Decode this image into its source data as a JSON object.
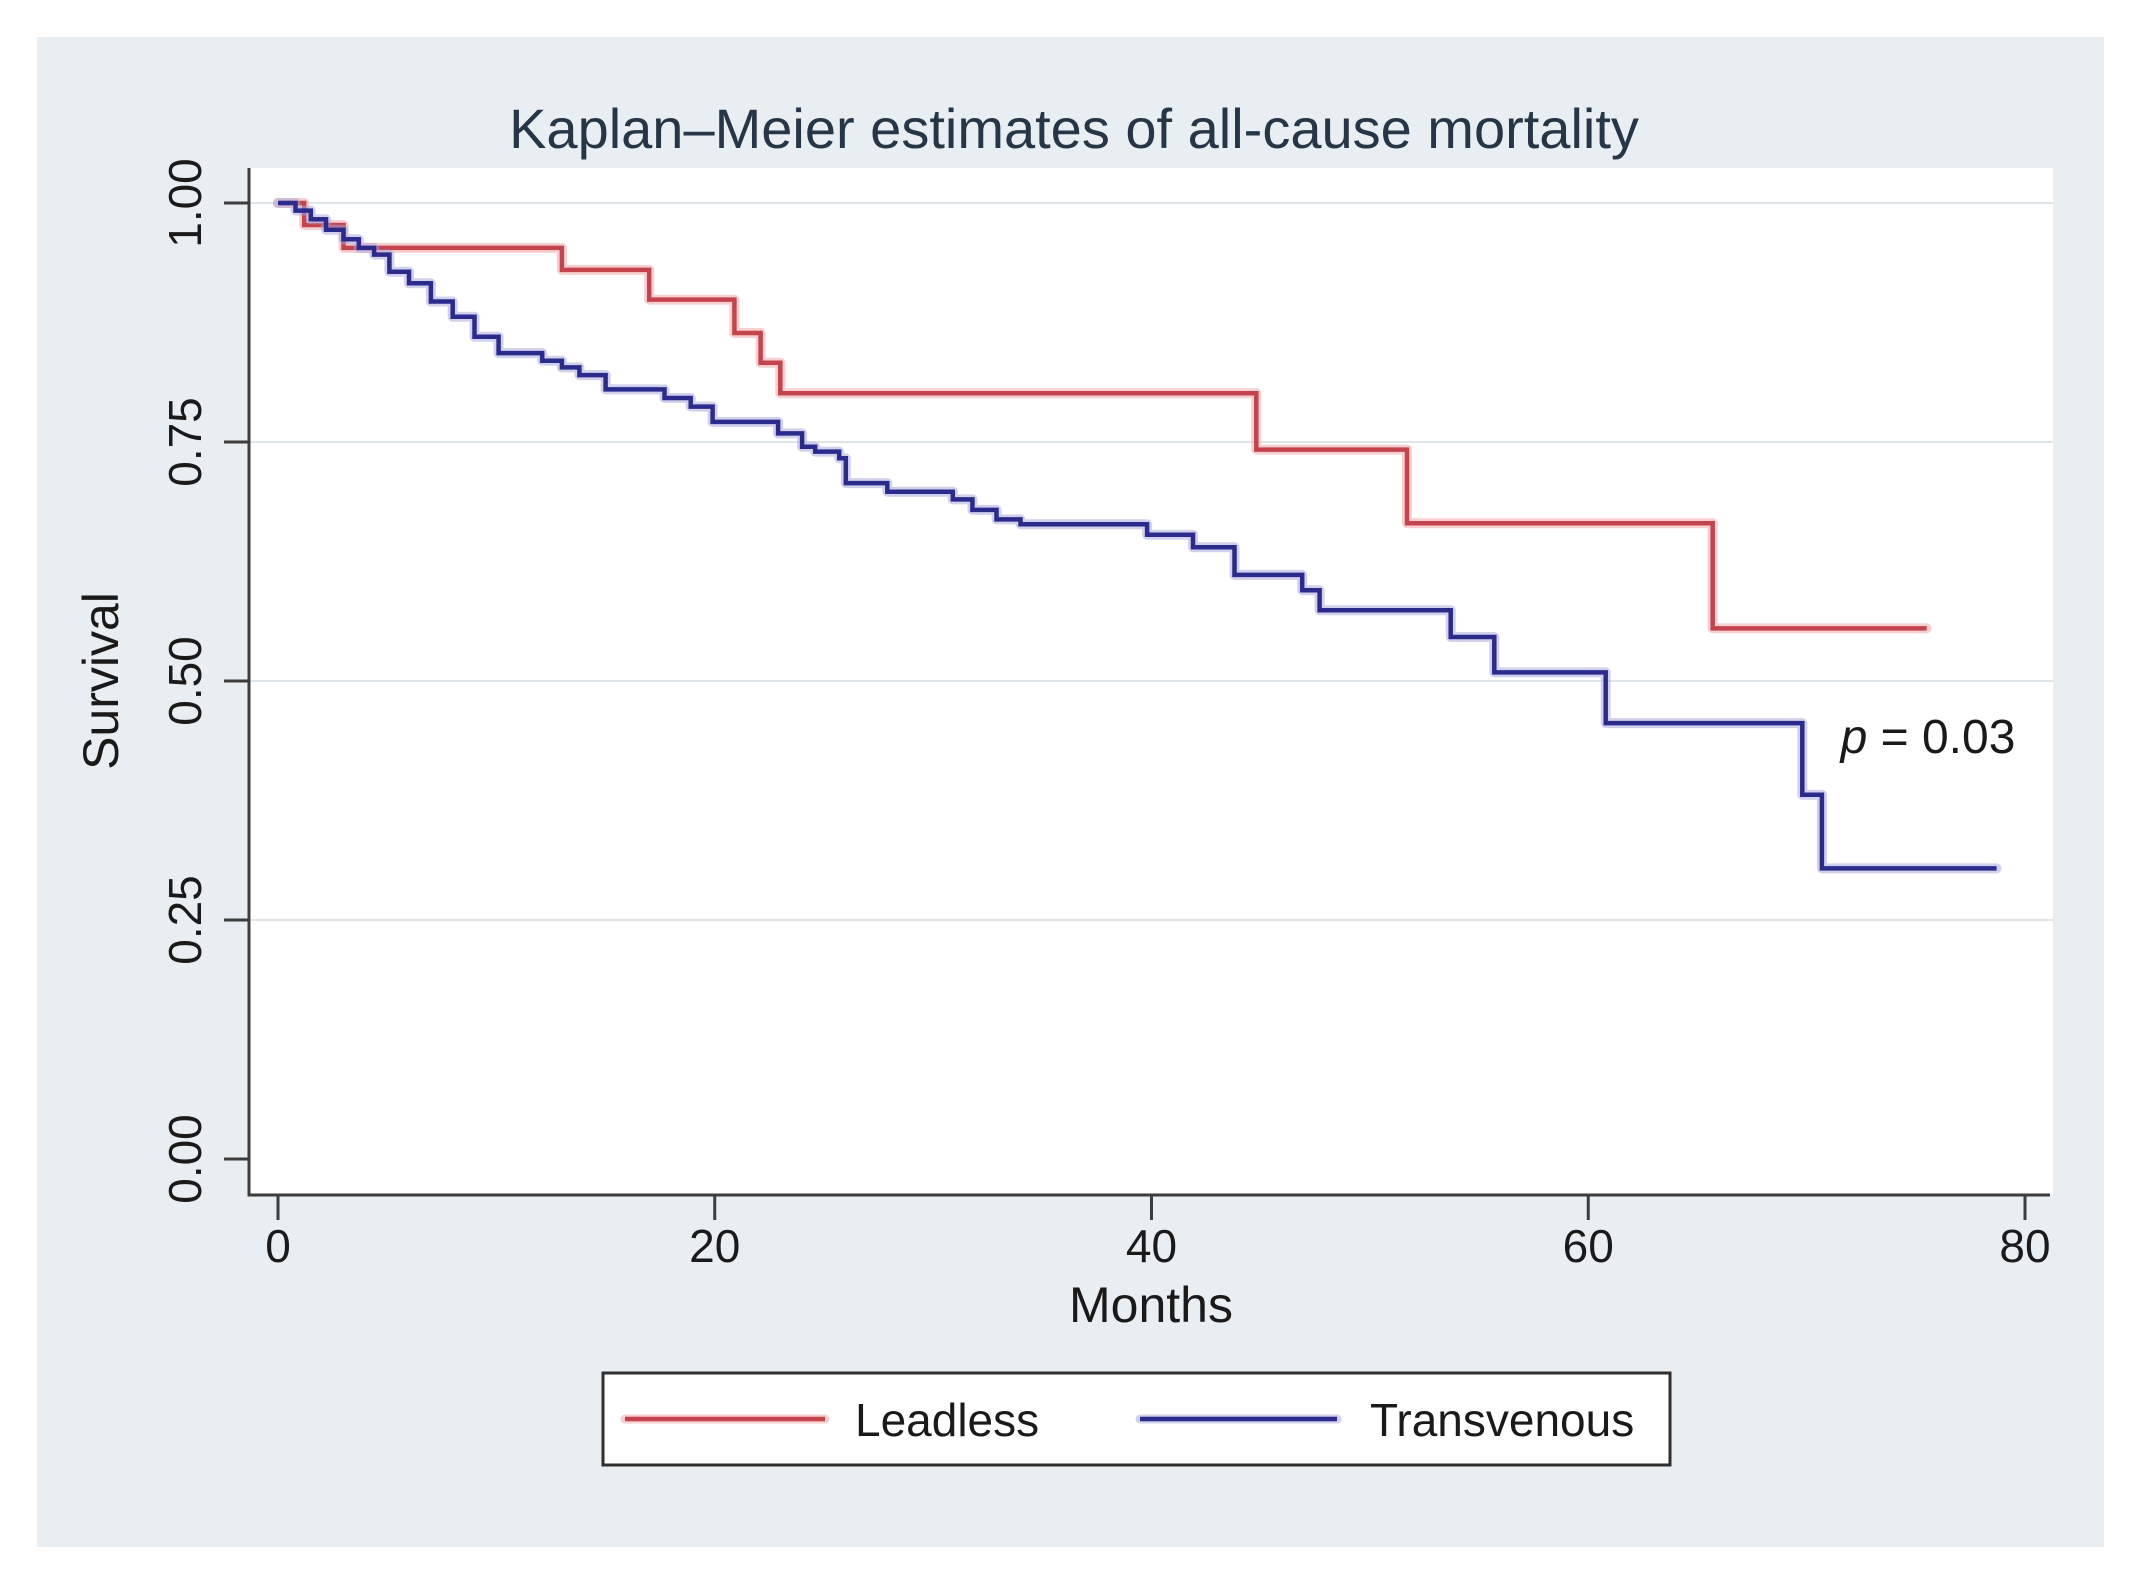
{
  "figure": {
    "background": "#ffffff",
    "panel_background": "#e8eef1",
    "plot_background": "#ffffff",
    "gridline_color": "#dfe6ea",
    "axis_color": "#3d3d3d",
    "text_color": "#1a1a1a",
    "title_color": "#263646"
  },
  "annotation": {
    "p_italic": "p",
    "p_rest": " = 0.03"
  },
  "chart_data": {
    "type": "line",
    "subtype": "kaplan-meier-step",
    "title": "Kaplan–Meier estimates of all-cause mortality",
    "xlabel": "Months",
    "ylabel": "Survival",
    "xlim": [
      0,
      80
    ],
    "ylim": [
      0.0,
      1.0
    ],
    "grid": "horizontal-only",
    "legend_position": "bottom-center",
    "annotation_text": "p = 0.03",
    "annotation_at": {
      "month": 75.5,
      "survival": 0.44
    },
    "x_ticks": [
      {
        "value": 0,
        "label": "0"
      },
      {
        "value": 20,
        "label": "20"
      },
      {
        "value": 40,
        "label": "40"
      },
      {
        "value": 60,
        "label": "60"
      },
      {
        "value": 80,
        "label": "80"
      }
    ],
    "y_ticks": [
      {
        "value": 1.0,
        "label": "1.00"
      },
      {
        "value": 0.75,
        "label": "0.75"
      },
      {
        "value": 0.5,
        "label": "0.50"
      },
      {
        "value": 0.25,
        "label": "0.25"
      },
      {
        "value": 0.0,
        "label": "0.00"
      }
    ],
    "y_gridlines": [
      1.0,
      0.75,
      0.5,
      0.25
    ],
    "series": [
      {
        "name": "Leadless",
        "color": "#c4444e",
        "halo_color": "#f2a0a3",
        "end_month": 75.5,
        "points": [
          [
            0.0,
            1.0
          ],
          [
            1.2,
            0.977
          ],
          [
            3.0,
            0.953
          ],
          [
            13.0,
            0.93
          ],
          [
            17.0,
            0.899
          ],
          [
            20.9,
            0.864
          ],
          [
            22.1,
            0.833
          ],
          [
            23.0,
            0.801
          ],
          [
            44.8,
            0.742
          ],
          [
            51.7,
            0.665
          ],
          [
            65.7,
            0.555
          ]
        ]
      },
      {
        "name": "Transvenous",
        "color": "#2b2b8b",
        "halo_color": "#a3a3de",
        "end_month": 78.7,
        "points": [
          [
            0.0,
            1.0
          ],
          [
            0.8,
            0.992
          ],
          [
            1.5,
            0.983
          ],
          [
            2.2,
            0.972
          ],
          [
            3.0,
            0.962
          ],
          [
            3.7,
            0.953
          ],
          [
            4.4,
            0.946
          ],
          [
            5.1,
            0.928
          ],
          [
            6.0,
            0.916
          ],
          [
            7.0,
            0.897
          ],
          [
            8.0,
            0.881
          ],
          [
            9.0,
            0.86
          ],
          [
            10.1,
            0.843
          ],
          [
            12.1,
            0.835
          ],
          [
            13.0,
            0.828
          ],
          [
            13.8,
            0.82
          ],
          [
            15.0,
            0.805
          ],
          [
            17.7,
            0.796
          ],
          [
            18.9,
            0.787
          ],
          [
            19.9,
            0.771
          ],
          [
            22.9,
            0.759
          ],
          [
            24.0,
            0.745
          ],
          [
            24.6,
            0.74
          ],
          [
            25.7,
            0.733
          ],
          [
            26.0,
            0.707
          ],
          [
            27.9,
            0.698
          ],
          [
            30.9,
            0.69
          ],
          [
            31.8,
            0.679
          ],
          [
            32.9,
            0.669
          ],
          [
            34.0,
            0.664
          ],
          [
            39.8,
            0.653
          ],
          [
            41.9,
            0.64
          ],
          [
            43.8,
            0.611
          ],
          [
            46.9,
            0.595
          ],
          [
            47.7,
            0.574
          ],
          [
            53.7,
            0.546
          ],
          [
            55.7,
            0.509
          ],
          [
            60.8,
            0.456
          ],
          [
            69.8,
            0.381
          ],
          [
            70.7,
            0.304
          ]
        ]
      }
    ]
  }
}
